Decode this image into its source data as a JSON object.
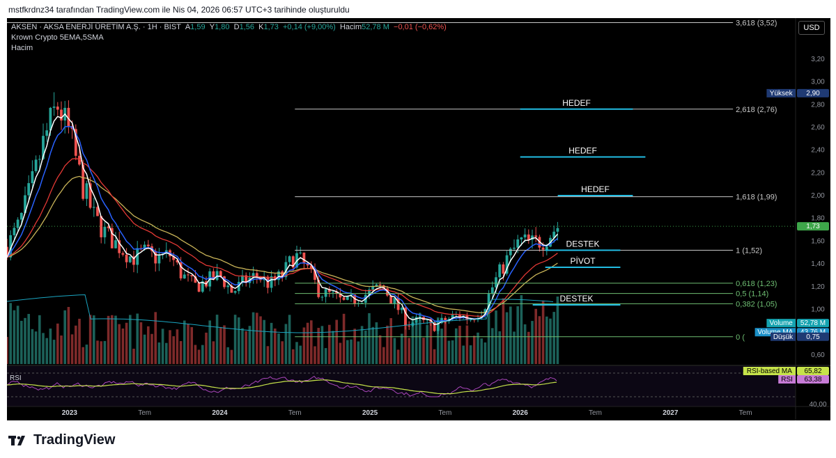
{
  "header": {
    "attribution": "mstfkrdnz34 tarafından TradingView.com ile Nis 04, 2026 06:57 UTC+3 tarihinde oluşturuldu"
  },
  "legend": {
    "symbol": "AKSEN · AKSA ENERJİ ÜRETİM A.Ş. · 1H · BIST",
    "open_label": "A",
    "open": "1,59",
    "high_label": "Y",
    "high": "1,80",
    "low_label": "D",
    "low": "1,56",
    "close_label": "K",
    "close": "1,73",
    "change": "+0,14 (+9,00%)",
    "volume_label": "Hacim",
    "volume": "52,78 M",
    "volume_change": "−0,01 (−0,62%)",
    "indicator": "Krown Crypto 5EMA,5SMA",
    "volume_indicator": "Hacim"
  },
  "currency_button": "USD",
  "rsi_pane_label": "RSI",
  "brand": {
    "name": "TradingView",
    "logo_icon": "tradingview-logo-icon"
  },
  "colors": {
    "up": "#26a69a",
    "down": "#ef5350",
    "ema": "#ffffff",
    "ema2": "#2962ff",
    "ema3": "#e53935",
    "sma": "#c9b458",
    "volume_ma": "#1aa6c2",
    "rsi": "#ab47bc",
    "rsi_ma": "#c6e34a",
    "annotation": "#22bde3"
  },
  "chart_data": {
    "type": "candlestick",
    "symbol": "AKSEN",
    "interval": "1H",
    "y_range": [
      0.52,
      3.56
    ],
    "x_range": [
      "2022-08",
      "2027-11"
    ],
    "price_axis_ticks": [
      "0,60",
      "0,80",
      "1,00",
      "1,20",
      "1,40",
      "1,60",
      "1,80",
      "2,00",
      "2,20",
      "2,40",
      "2,60",
      "2,80",
      "3,00",
      "3,20"
    ],
    "tick_values": [
      0.6,
      0.8,
      1.0,
      1.2,
      1.4,
      1.6,
      1.8,
      2.0,
      2.2,
      2.4,
      2.6,
      2.8,
      3.0,
      3.2
    ],
    "time_axis": [
      {
        "label": "2023",
        "date": "2023-01",
        "bold": true
      },
      {
        "label": "Tem",
        "date": "2023-07",
        "bold": false
      },
      {
        "label": "2024",
        "date": "2024-01",
        "bold": true
      },
      {
        "label": "Tem",
        "date": "2024-07",
        "bold": false
      },
      {
        "label": "2025",
        "date": "2025-01",
        "bold": true
      },
      {
        "label": "Tem",
        "date": "2025-07",
        "bold": false
      },
      {
        "label": "2026",
        "date": "2026-01",
        "bold": true
      },
      {
        "label": "Tem",
        "date": "2026-07",
        "bold": false
      },
      {
        "label": "2027",
        "date": "2027-01",
        "bold": true
      },
      {
        "label": "Tem",
        "date": "2027-07",
        "bold": false
      }
    ],
    "price_path": [
      [
        "2022-08",
        1.55
      ],
      [
        "2022-09",
        1.75
      ],
      [
        "2022-10",
        2.1
      ],
      [
        "2022-11",
        2.5
      ],
      [
        "2022-12",
        2.8
      ],
      [
        "2023-01",
        2.55
      ],
      [
        "2023-02",
        2.1
      ],
      [
        "2023-03",
        1.8
      ],
      [
        "2023-04",
        1.65
      ],
      [
        "2023-05",
        1.55
      ],
      [
        "2023-06",
        1.45
      ],
      [
        "2023-07",
        1.5
      ],
      [
        "2023-08",
        1.45
      ],
      [
        "2023-09",
        1.48
      ],
      [
        "2023-10",
        1.3
      ],
      [
        "2023-11",
        1.2
      ],
      [
        "2023-12",
        1.25
      ],
      [
        "2024-01",
        1.3
      ],
      [
        "2024-02",
        1.15
      ],
      [
        "2024-03",
        1.25
      ],
      [
        "2024-04",
        1.3
      ],
      [
        "2024-05",
        1.22
      ],
      [
        "2024-06",
        1.3
      ],
      [
        "2024-07",
        1.48
      ],
      [
        "2024-08",
        1.35
      ],
      [
        "2024-09",
        1.15
      ],
      [
        "2024-10",
        1.12
      ],
      [
        "2024-11",
        1.05
      ],
      [
        "2024-12",
        1.1
      ],
      [
        "2025-01",
        1.15
      ],
      [
        "2025-02",
        1.2
      ],
      [
        "2025-03",
        1.05
      ],
      [
        "2025-04",
        0.88
      ],
      [
        "2025-05",
        0.9
      ],
      [
        "2025-06",
        0.85
      ],
      [
        "2025-07",
        0.9
      ],
      [
        "2025-08",
        0.95
      ],
      [
        "2025-09",
        0.92
      ],
      [
        "2025-10",
        1.0
      ],
      [
        "2025-11",
        1.25
      ],
      [
        "2025-12",
        1.45
      ],
      [
        "2026-01",
        1.6
      ],
      [
        "2026-02",
        1.58
      ],
      [
        "2026-03",
        1.62
      ],
      [
        "2026-04",
        1.73
      ]
    ],
    "fibonacci": [
      {
        "label": "3,618 (3,52)",
        "price": 3.52,
        "from": "2022-08",
        "to": "2027-06",
        "color": "#c8c8c8"
      },
      {
        "label": "2,618 (2,76)",
        "price": 2.76,
        "from": "2024-07",
        "to": "2027-06",
        "color": "#c8c8c8"
      },
      {
        "label": "1,618 (1,99)",
        "price": 1.99,
        "from": "2024-07",
        "to": "2027-06",
        "color": "#c8c8c8"
      },
      {
        "label": "1 (1,52)",
        "price": 1.52,
        "from": "2024-07",
        "to": "2027-06",
        "color": "#c8c8c8"
      },
      {
        "label": "0,618 (1,23)",
        "price": 1.23,
        "from": "2024-07",
        "to": "2027-06",
        "color": "#6fbf73"
      },
      {
        "label": "0,5 (1,14)",
        "price": 1.14,
        "from": "2024-07",
        "to": "2027-06",
        "color": "#6fbf73"
      },
      {
        "label": "0,382 (1,05)",
        "price": 1.05,
        "from": "2024-07",
        "to": "2027-06",
        "color": "#6fbf73"
      },
      {
        "label": "0 (",
        "price": 0.76,
        "from": "2024-07",
        "to": "2027-06",
        "color": "#6fbf73"
      }
    ],
    "annotations": [
      {
        "text": "HEDEF",
        "price": 2.76,
        "from": "2026-01",
        "to": "2026-10"
      },
      {
        "text": "HEDEF",
        "price": 2.34,
        "from": "2026-01",
        "to": "2026-11"
      },
      {
        "text": "HEDEF",
        "price": 2.0,
        "from": "2026-04",
        "to": "2026-10"
      },
      {
        "text": "DESTEK",
        "price": 1.52,
        "from": "2026-03",
        "to": "2026-09"
      },
      {
        "text": "PİVOT",
        "price": 1.37,
        "from": "2026-03",
        "to": "2026-09"
      },
      {
        "text": "DESTEK",
        "price": 1.04,
        "from": "2026-02",
        "to": "2026-09"
      }
    ],
    "price_labels": [
      {
        "text": "Yüksek",
        "value": "2,90",
        "price": 2.9,
        "bg": "#1f3a73"
      },
      {
        "text": "",
        "value": "1,73",
        "price": 1.73,
        "bg": "#3ea64a"
      },
      {
        "text": "Volume",
        "value": "52,78 M",
        "price": 0.88,
        "bg": "#14a3b0"
      },
      {
        "text": "Volume MA",
        "value": "43,76 M",
        "price": 0.8,
        "bg": "#1b8fc6"
      },
      {
        "text": "Düşük",
        "value": "0,75",
        "price": 0.76,
        "bg": "#1f3a73"
      }
    ],
    "rsi": {
      "ticks": [
        "40,00"
      ],
      "labels": [
        {
          "text": "RSI-based MA",
          "value": "65,82",
          "bg": "#c6e34a",
          "fg": "#000"
        },
        {
          "text": "RSI",
          "value": "63,38",
          "bg": "#c77bd6",
          "fg": "#000"
        }
      ]
    }
  }
}
